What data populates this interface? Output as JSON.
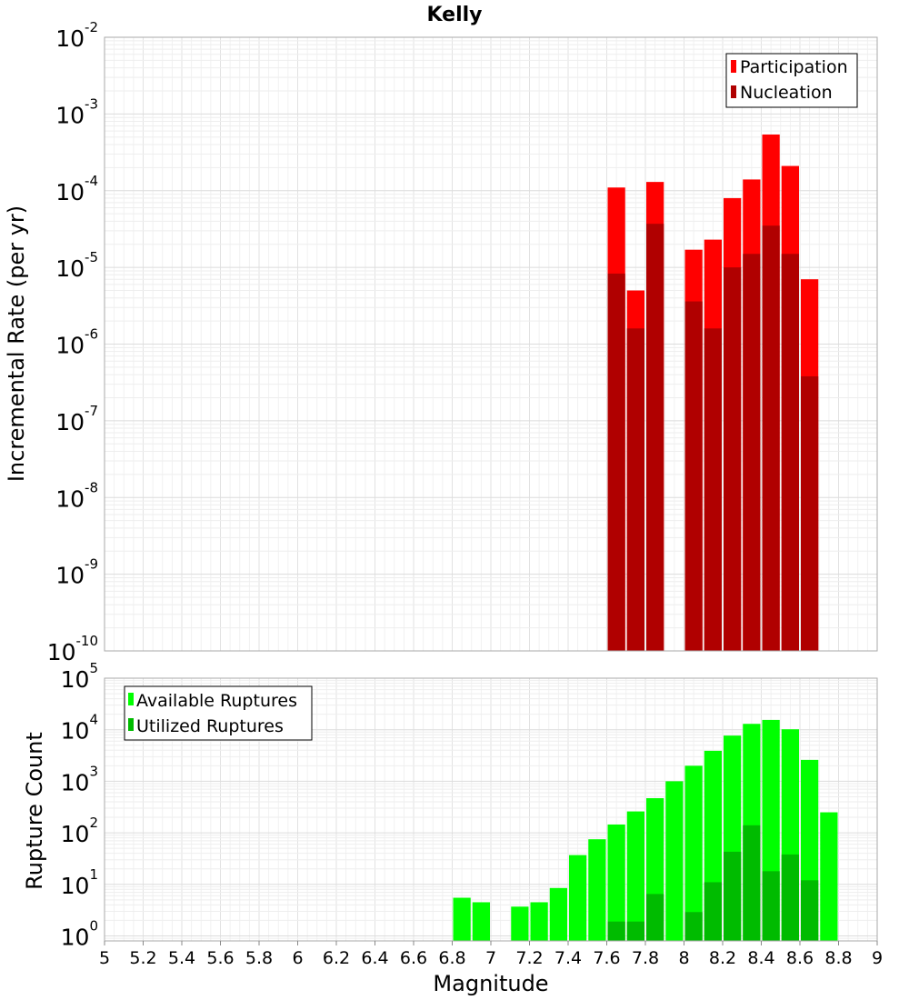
{
  "chart_data": [
    {
      "type": "bar",
      "title": "Kelly",
      "xlabel": "",
      "ylabel": "Incremental Rate (per yr)",
      "yscale": "log",
      "ylim": [
        1e-10,
        0.01
      ],
      "xlim": [
        5,
        9
      ],
      "y_tick_exponents": [
        -10,
        -9,
        -8,
        -7,
        -6,
        -5,
        -4,
        -3,
        -2
      ],
      "legend_position": "top-right",
      "series": [
        {
          "name": "Participation",
          "color": "#ff0000",
          "x": [
            7.65,
            7.75,
            7.85,
            8.05,
            8.15,
            8.25,
            8.35,
            8.45,
            8.55,
            8.65
          ],
          "values": [
            0.00011,
            5e-06,
            0.00013,
            1.7e-05,
            2.3e-05,
            8e-05,
            0.00014,
            0.00054,
            0.00021,
            7e-06
          ]
        },
        {
          "name": "Nucleation",
          "color": "#b00000",
          "x": [
            7.65,
            7.75,
            7.85,
            8.05,
            8.15,
            8.25,
            8.35,
            8.45,
            8.55,
            8.65
          ],
          "values": [
            8.3e-06,
            1.6e-06,
            3.7e-05,
            3.6e-06,
            1.6e-06,
            1e-05,
            1.5e-05,
            3.5e-05,
            1.5e-05,
            3.8e-07
          ]
        }
      ]
    },
    {
      "type": "bar",
      "title": "",
      "xlabel": "Magnitude",
      "ylabel": "Rupture Count",
      "yscale": "log",
      "ylim": [
        0.8,
        100000.0
      ],
      "xlim": [
        5,
        9
      ],
      "y_tick_exponents": [
        0,
        1,
        2,
        3,
        4,
        5
      ],
      "x_ticks": [
        "5",
        "5.2",
        "5.4",
        "5.6",
        "5.8",
        "6",
        "6.2",
        "6.4",
        "6.6",
        "6.8",
        "7",
        "7.2",
        "7.4",
        "7.6",
        "7.8",
        "8",
        "8.2",
        "8.4",
        "8.6",
        "8.8",
        "9"
      ],
      "legend_position": "top-left",
      "series": [
        {
          "name": "Available Ruptures",
          "color": "#00ff00",
          "x": [
            6.85,
            6.95,
            7.15,
            7.25,
            7.35,
            7.45,
            7.55,
            7.65,
            7.75,
            7.85,
            7.95,
            8.05,
            8.15,
            8.25,
            8.35,
            8.45,
            8.55,
            8.65,
            8.75
          ],
          "values": [
            5.5,
            4.5,
            3.7,
            4.5,
            8.5,
            37,
            75,
            145,
            260,
            470,
            1000,
            2000,
            3900,
            7700,
            13000,
            15500,
            10200,
            2600,
            250
          ]
        },
        {
          "name": "Utilized Ruptures",
          "color": "#00bb00",
          "x": [
            7.65,
            7.75,
            7.85,
            8.05,
            8.15,
            8.25,
            8.35,
            8.45,
            8.55,
            8.65
          ],
          "values": [
            1.9,
            1.9,
            6.5,
            2.9,
            11,
            43,
            140,
            18,
            38,
            12
          ]
        }
      ]
    }
  ]
}
